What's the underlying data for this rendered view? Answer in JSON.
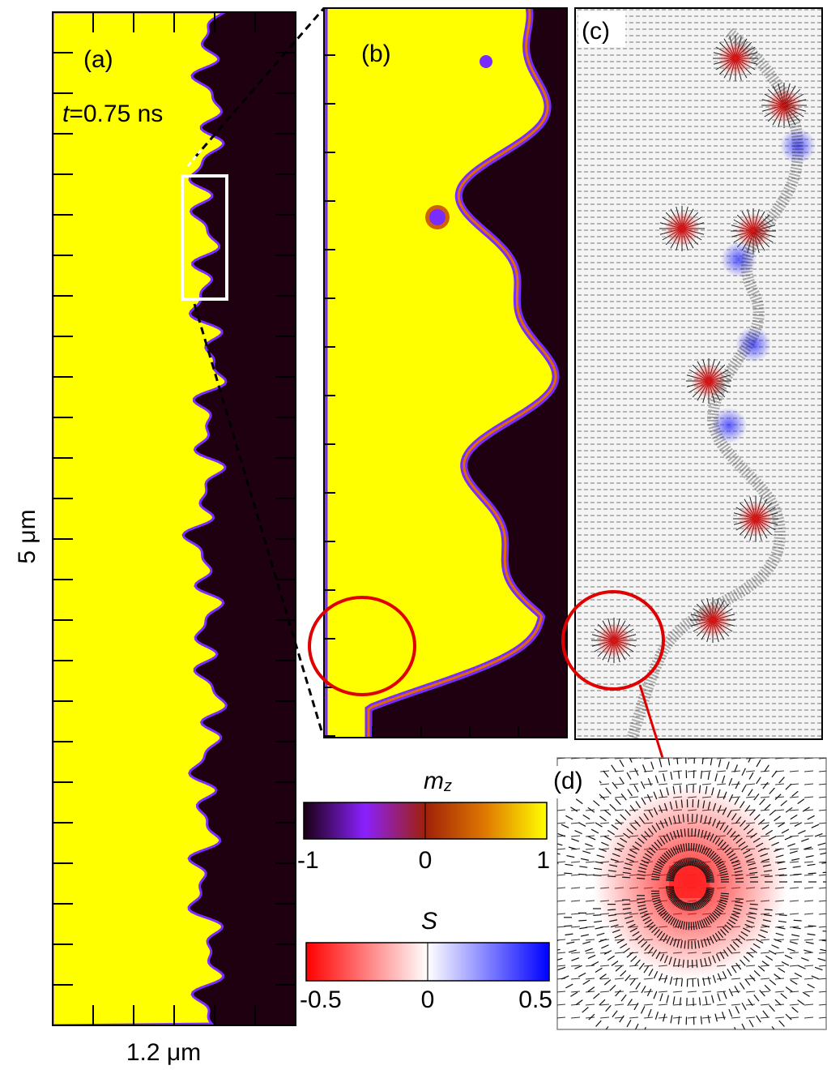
{
  "panels": {
    "a": {
      "label": "(a)",
      "time": {
        "symbol": "t",
        "value": "=0.75 ns"
      },
      "height": "5 μm",
      "width": "1.2 μm"
    },
    "b": {
      "label": "(b)"
    },
    "c": {
      "label": "(c)"
    },
    "d": {
      "label": "(d)"
    }
  },
  "colorbars": [
    {
      "symbol": "m",
      "subscript": "z",
      "ticks": [
        -1,
        0,
        1
      ]
    },
    {
      "symbol": "S",
      "ticks": [
        -0.5,
        0,
        0.5
      ]
    }
  ]
}
